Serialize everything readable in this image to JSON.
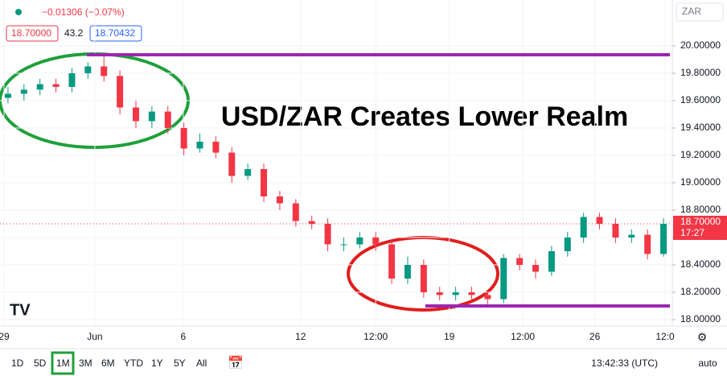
{
  "header": {
    "change": "−0.01306 (−0.07%)",
    "bid": "18.70000",
    "spread": "43.2",
    "ask": "18.70432"
  },
  "chart_data": {
    "type": "candlestick",
    "title": "USD/ZAR Creates Lower Realm",
    "currency": "ZAR",
    "up_color": "#089981",
    "down_color": "#f23645",
    "x": [
      0,
      1,
      2,
      3,
      4,
      5,
      6,
      7,
      8,
      9,
      10,
      11,
      12,
      13,
      14,
      15,
      16,
      17,
      18,
      19,
      20,
      21,
      22,
      23,
      24,
      25,
      26,
      27,
      28,
      29,
      30,
      31,
      32,
      33,
      34,
      35,
      36,
      37,
      38,
      39,
      40,
      41
    ],
    "open": [
      19.62,
      19.65,
      19.68,
      19.72,
      19.7,
      19.8,
      19.85,
      19.78,
      19.55,
      19.45,
      19.52,
      19.4,
      19.25,
      19.3,
      19.22,
      19.05,
      19.1,
      18.9,
      18.85,
      18.72,
      18.7,
      18.55,
      18.55,
      18.6,
      18.55,
      18.3,
      18.4,
      18.2,
      18.18,
      18.2,
      18.18,
      18.15,
      18.45,
      18.4,
      18.35,
      18.5,
      18.6,
      18.75,
      18.7,
      18.6,
      18.62,
      18.48
    ],
    "high": [
      19.7,
      19.72,
      19.76,
      19.76,
      19.84,
      19.88,
      19.94,
      19.82,
      19.6,
      19.56,
      19.56,
      19.44,
      19.36,
      19.34,
      19.26,
      19.14,
      19.14,
      18.94,
      18.88,
      18.76,
      18.74,
      18.6,
      18.64,
      18.64,
      18.58,
      18.46,
      18.44,
      18.24,
      18.24,
      18.24,
      18.22,
      18.48,
      18.48,
      18.44,
      18.54,
      18.64,
      18.78,
      18.78,
      18.74,
      18.66,
      18.66,
      18.74
    ],
    "low": [
      19.58,
      19.6,
      19.64,
      19.66,
      19.66,
      19.76,
      19.74,
      19.5,
      19.4,
      19.4,
      19.36,
      19.2,
      19.22,
      19.18,
      19.0,
      19.02,
      18.86,
      18.8,
      18.68,
      18.66,
      18.5,
      18.5,
      18.52,
      18.5,
      18.26,
      18.26,
      18.16,
      18.14,
      18.14,
      18.14,
      18.11,
      18.12,
      18.36,
      18.3,
      18.32,
      18.46,
      18.56,
      18.66,
      18.56,
      18.56,
      18.44,
      18.46
    ],
    "close": [
      19.65,
      19.68,
      19.72,
      19.7,
      19.8,
      19.85,
      19.78,
      19.55,
      19.45,
      19.52,
      19.4,
      19.25,
      19.3,
      19.22,
      19.05,
      19.1,
      18.9,
      18.85,
      18.72,
      18.7,
      18.55,
      18.55,
      18.6,
      18.55,
      18.3,
      18.4,
      18.2,
      18.18,
      18.2,
      18.18,
      18.15,
      18.45,
      18.4,
      18.35,
      18.5,
      18.6,
      18.75,
      18.7,
      18.6,
      18.62,
      18.48,
      18.7
    ],
    "xlim": [
      -0.5,
      41.5
    ],
    "xticks": [
      {
        "value": -0.25,
        "label": "29"
      },
      {
        "value": 5.43,
        "label": "Jun"
      },
      {
        "value": 10.96,
        "label": "6"
      },
      {
        "value": 18.3,
        "label": "12"
      },
      {
        "value": 23.0,
        "label": "12:00"
      },
      {
        "value": 27.6,
        "label": "19"
      },
      {
        "value": 32.2,
        "label": "12:00"
      },
      {
        "value": 36.7,
        "label": "26"
      },
      {
        "value": 41.1,
        "label": "12:0"
      }
    ],
    "ylim": [
      17.953,
      20.335
    ],
    "yticks": [
      {
        "value": 18.0,
        "label": "18.00000"
      },
      {
        "value": 18.2,
        "label": "18.20000"
      },
      {
        "value": 18.4,
        "label": "18.40000"
      },
      {
        "value": 18.6,
        "label": "18.60000"
      },
      {
        "value": 18.8,
        "label": "18.80000"
      },
      {
        "value": 19.0,
        "label": "19.00000"
      },
      {
        "value": 19.2,
        "label": "19.20000"
      },
      {
        "value": 19.4,
        "label": "19.40000"
      },
      {
        "value": 19.6,
        "label": "19.60000"
      },
      {
        "value": 19.8,
        "label": "19.80000"
      },
      {
        "value": 20.0,
        "label": "20.00000"
      }
    ],
    "last_price": {
      "value": 18.7,
      "label": "18.70000",
      "countdown": "17:27",
      "color": "#f23645"
    },
    "levels": [
      {
        "value": 19.935,
        "start": 4.93,
        "color": "#9c27b0"
      },
      {
        "value": 18.1,
        "start": 26.1,
        "color": "#9c27b0"
      }
    ]
  },
  "toolbar": {
    "intervals": [
      "1D",
      "5D",
      "1M",
      "3M",
      "6M",
      "YTD",
      "1Y",
      "5Y",
      "All"
    ],
    "active_interval": "1M",
    "clock": "13:42:33 (UTC)",
    "scale": "auto"
  }
}
